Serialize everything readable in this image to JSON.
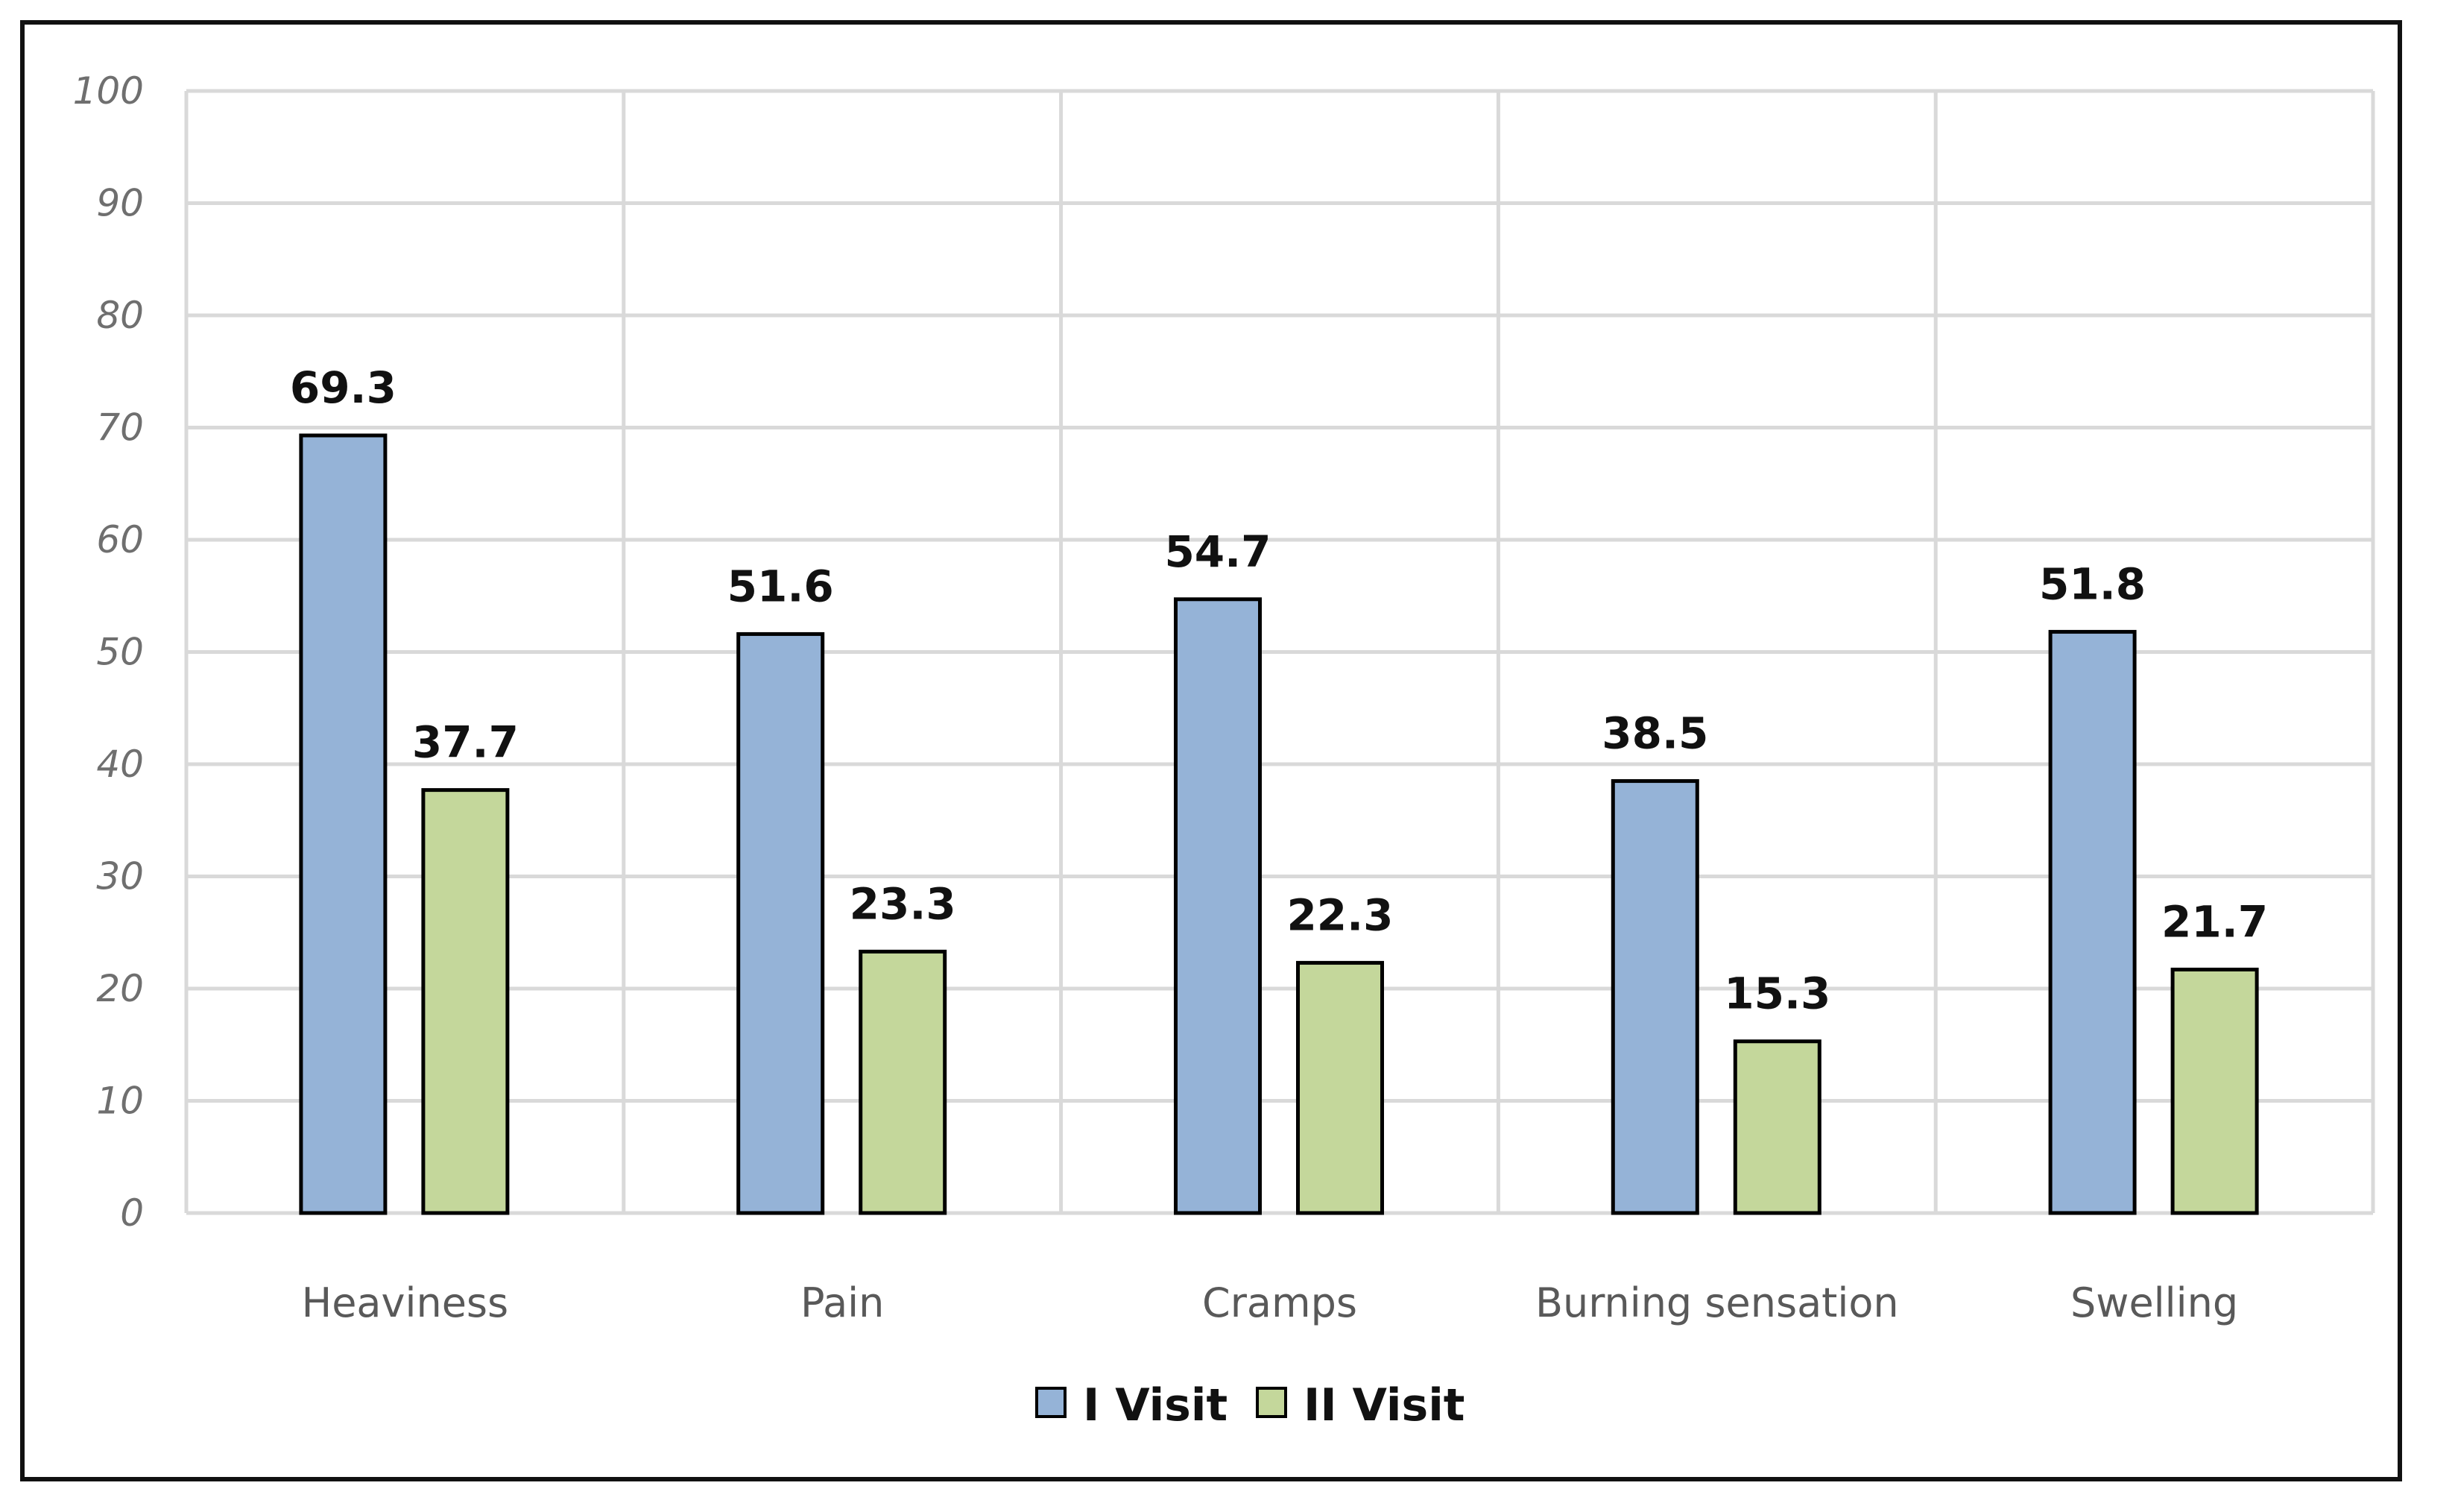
{
  "chart_data": {
    "type": "bar",
    "categories": [
      "Heaviness",
      "Pain",
      "Cramps",
      "Burning sensation",
      "Swelling"
    ],
    "series": [
      {
        "name": "I Visit",
        "values": [
          69.3,
          51.6,
          54.7,
          38.5,
          51.8
        ],
        "color": "#95b3d7"
      },
      {
        "name": "II Visit",
        "values": [
          37.7,
          23.3,
          22.3,
          15.3,
          21.7
        ],
        "color": "#c4d79b"
      }
    ],
    "yticks": [
      0,
      10,
      20,
      30,
      40,
      50,
      60,
      70,
      80,
      90,
      100
    ],
    "ylim": [
      0,
      100
    ],
    "title": "",
    "xlabel": "",
    "ylabel": "",
    "grid": true,
    "legend_position": "bottom",
    "colors": {
      "border": "#111111",
      "grid": "#d9d9d9",
      "bar_outline": "#000000"
    }
  }
}
